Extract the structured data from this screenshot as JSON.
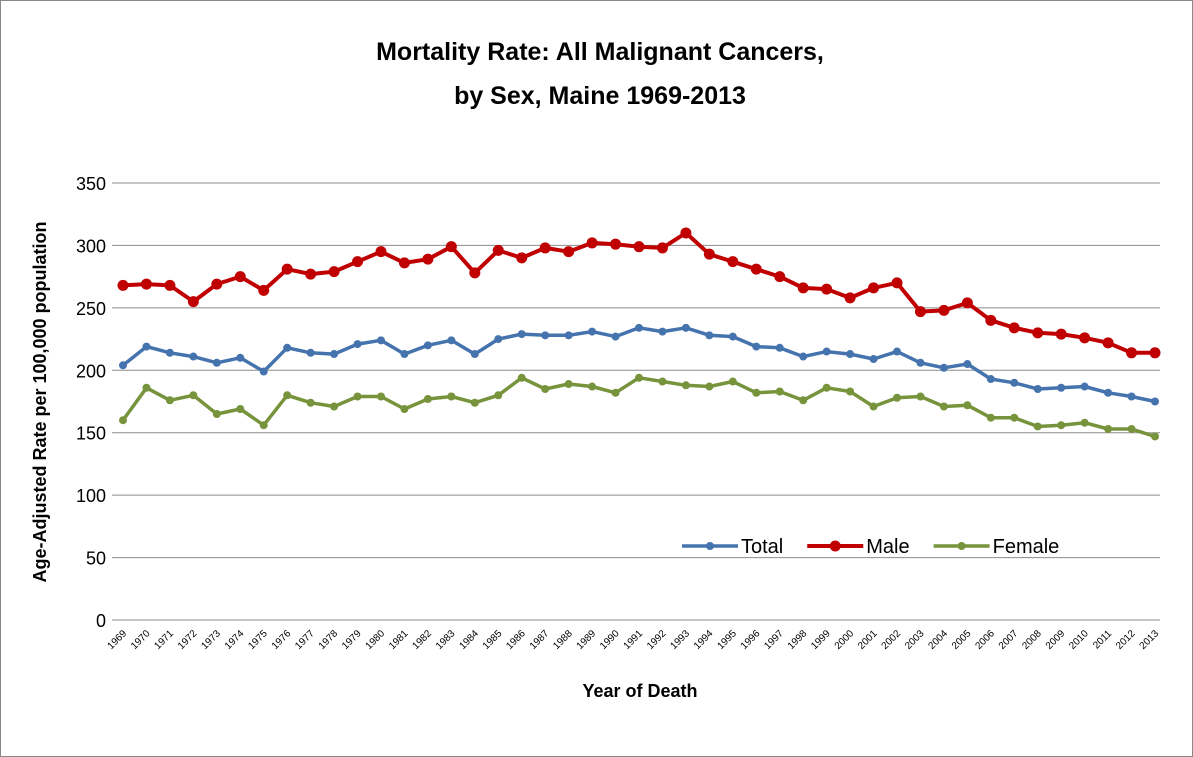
{
  "chart_data": {
    "type": "line",
    "title": [
      "Mortality Rate: All Malignant Cancers,",
      "by Sex, Maine 1969-2013"
    ],
    "x_label": "Year of Death",
    "y_label": "Age-Adjusted Rate per 100,000 population",
    "categories": [
      "1969",
      "1970",
      "1971",
      "1972",
      "1973",
      "1974",
      "1975",
      "1976",
      "1977",
      "1978",
      "1979",
      "1980",
      "1981",
      "1982",
      "1983",
      "1984",
      "1985",
      "1986",
      "1987",
      "1988",
      "1989",
      "1990",
      "1991",
      "1992",
      "1993",
      "1994",
      "1995",
      "1996",
      "1997",
      "1998",
      "1999",
      "2000",
      "2001",
      "2002",
      "2003",
      "2004",
      "2005",
      "2006",
      "2007",
      "2008",
      "2009",
      "2010",
      "2011",
      "2012",
      "2013"
    ],
    "series": [
      {
        "name": "Total",
        "color": "#4573ad",
        "values": [
          204,
          219,
          214,
          211,
          206,
          210,
          199,
          218,
          214,
          213,
          221,
          224,
          213,
          220,
          224,
          213,
          225,
          229,
          228,
          228,
          231,
          227,
          234,
          231,
          234,
          228,
          227,
          219,
          218,
          211,
          215,
          213,
          209,
          215,
          206,
          202,
          205,
          193,
          190,
          185,
          186,
          187,
          182,
          179,
          175
        ]
      },
      {
        "name": "Male",
        "color": "#c00000",
        "values": [
          268,
          269,
          268,
          255,
          269,
          275,
          264,
          281,
          277,
          279,
          287,
          295,
          286,
          289,
          299,
          278,
          296,
          290,
          298,
          295,
          302,
          301,
          299,
          298,
          310,
          293,
          287,
          281,
          275,
          266,
          265,
          258,
          266,
          270,
          247,
          248,
          254,
          240,
          234,
          230,
          229,
          226,
          222,
          214,
          214
        ]
      },
      {
        "name": "Female",
        "color": "#77933c",
        "values": [
          160,
          186,
          176,
          180,
          165,
          169,
          156,
          180,
          174,
          171,
          179,
          179,
          169,
          177,
          179,
          174,
          180,
          194,
          185,
          189,
          187,
          182,
          194,
          191,
          188,
          187,
          191,
          182,
          183,
          176,
          186,
          183,
          171,
          178,
          179,
          171,
          172,
          162,
          162,
          155,
          156,
          158,
          153,
          153,
          147
        ]
      }
    ],
    "ylim": [
      0,
      350
    ],
    "yticks": [
      0,
      50,
      100,
      150,
      200,
      250,
      300,
      350
    ],
    "grid": true,
    "legend": "lower right"
  }
}
